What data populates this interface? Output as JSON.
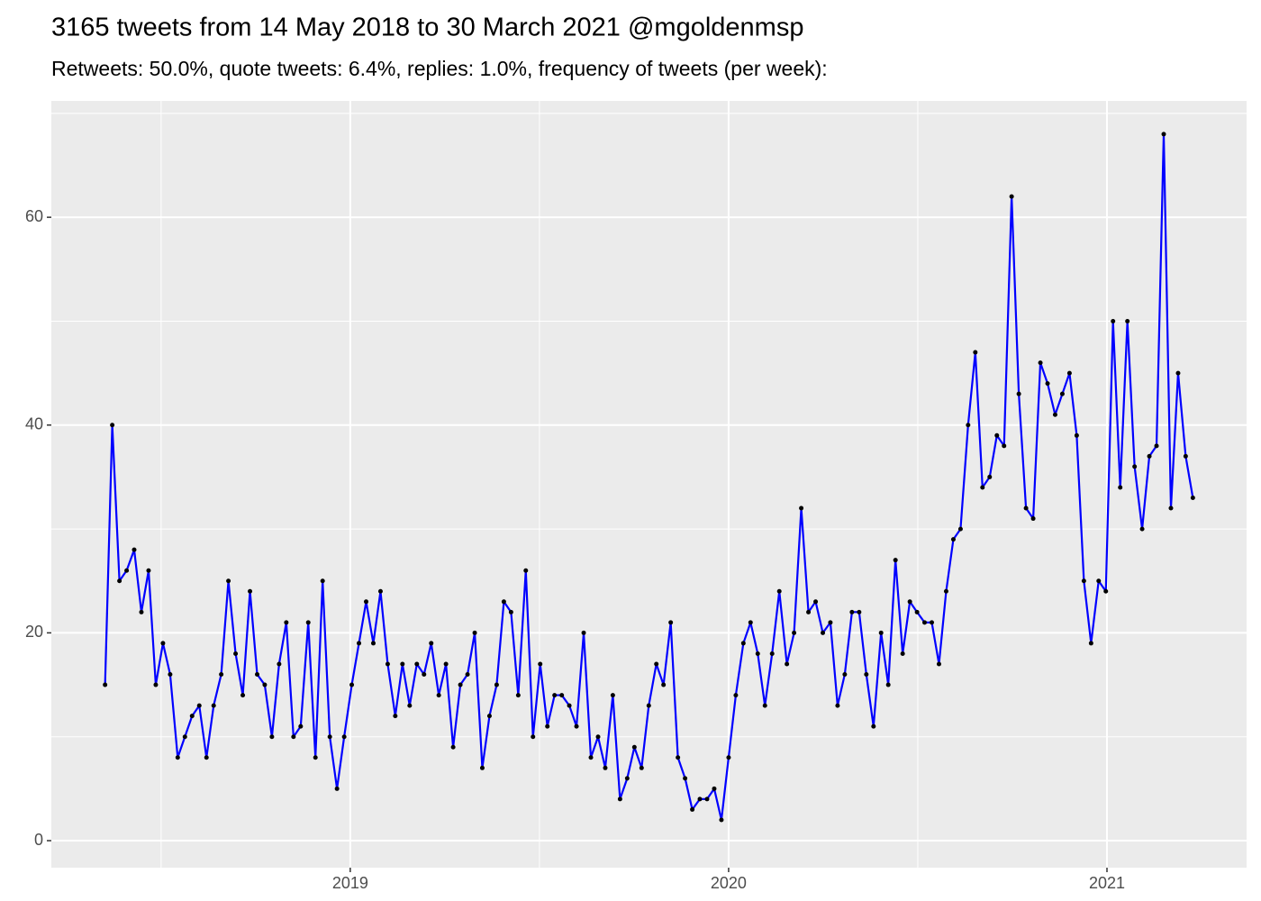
{
  "chart_data": {
    "type": "line",
    "title": "3165 tweets from 14 May 2018 to 30 March 2021 @mgoldenmsp",
    "subtitle": "Retweets: 50.0%, quote tweets: 6.4%, replies: 1.0%, frequency of tweets (per week):",
    "x": [
      2018.352,
      2018.371,
      2018.39,
      2018.409,
      2018.429,
      2018.448,
      2018.467,
      2018.486,
      2018.505,
      2018.524,
      2018.544,
      2018.563,
      2018.582,
      2018.601,
      2018.62,
      2018.639,
      2018.659,
      2018.678,
      2018.697,
      2018.716,
      2018.735,
      2018.754,
      2018.774,
      2018.793,
      2018.812,
      2018.831,
      2018.85,
      2018.869,
      2018.889,
      2018.908,
      2018.927,
      2018.946,
      2018.965,
      2018.984,
      2019.004,
      2019.023,
      2019.042,
      2019.061,
      2019.08,
      2019.099,
      2019.119,
      2019.138,
      2019.157,
      2019.176,
      2019.195,
      2019.214,
      2019.234,
      2019.253,
      2019.272,
      2019.291,
      2019.31,
      2019.329,
      2019.349,
      2019.368,
      2019.387,
      2019.406,
      2019.425,
      2019.444,
      2019.464,
      2019.483,
      2019.502,
      2019.521,
      2019.54,
      2019.559,
      2019.579,
      2019.598,
      2019.617,
      2019.636,
      2019.655,
      2019.674,
      2019.694,
      2019.713,
      2019.732,
      2019.751,
      2019.77,
      2019.789,
      2019.809,
      2019.828,
      2019.847,
      2019.866,
      2019.885,
      2019.904,
      2019.924,
      2019.943,
      2019.962,
      2019.981,
      2020.0,
      2020.019,
      2020.039,
      2020.058,
      2020.077,
      2020.096,
      2020.115,
      2020.134,
      2020.154,
      2020.173,
      2020.192,
      2020.211,
      2020.23,
      2020.249,
      2020.269,
      2020.288,
      2020.307,
      2020.326,
      2020.345,
      2020.364,
      2020.383,
      2020.403,
      2020.422,
      2020.441,
      2020.46,
      2020.479,
      2020.498,
      2020.518,
      2020.537,
      2020.556,
      2020.575,
      2020.594,
      2020.613,
      2020.633,
      2020.652,
      2020.671,
      2020.69,
      2020.709,
      2020.728,
      2020.748,
      2020.767,
      2020.786,
      2020.805,
      2020.824,
      2020.843,
      2020.863,
      2020.882,
      2020.901,
      2020.92,
      2020.939,
      2020.958,
      2020.978,
      2020.997,
      2021.016,
      2021.035,
      2021.054,
      2021.073,
      2021.093,
      2021.112,
      2021.131,
      2021.15,
      2021.169,
      2021.188,
      2021.208,
      2021.227
    ],
    "series": [
      {
        "color": "#0000ff",
        "point_color": "#000000",
        "values": [
          15,
          40,
          25,
          26,
          28,
          22,
          26,
          15,
          19,
          16,
          8,
          10,
          12,
          13,
          8,
          13,
          16,
          25,
          18,
          14,
          24,
          16,
          15,
          10,
          17,
          21,
          10,
          11,
          21,
          8,
          25,
          10,
          5,
          10,
          15,
          19,
          23,
          19,
          24,
          17,
          12,
          17,
          13,
          17,
          16,
          19,
          14,
          17,
          9,
          15,
          16,
          20,
          7,
          12,
          15,
          23,
          22,
          14,
          26,
          10,
          17,
          11,
          14,
          14,
          13,
          11,
          20,
          8,
          10,
          7,
          14,
          4,
          6,
          9,
          7,
          13,
          17,
          15,
          21,
          8,
          6,
          3,
          4,
          4,
          5,
          2,
          8,
          14,
          19,
          21,
          18,
          13,
          18,
          24,
          17,
          20,
          32,
          22,
          23,
          20,
          21,
          13,
          16,
          22,
          22,
          16,
          11,
          20,
          15,
          27,
          18,
          23,
          22,
          21,
          21,
          17,
          24,
          29,
          30,
          40,
          47,
          34,
          35,
          39,
          38,
          62,
          43,
          32,
          31,
          46,
          44,
          41,
          43,
          45,
          39,
          25,
          19,
          25,
          24,
          50,
          34,
          50,
          36,
          30,
          37,
          38,
          68,
          32,
          45,
          37,
          33
        ]
      }
    ],
    "xlim": [
      2018.21,
      2021.369
    ],
    "xticks": [
      2019,
      2020,
      2021
    ],
    "xminor": [
      2018.5,
      2019.5,
      2020.5
    ],
    "ylim": [
      -2.6,
      71.2
    ],
    "yticks": [
      0,
      20,
      40,
      60
    ],
    "yminor": [
      10,
      30,
      50,
      70
    ],
    "grid": true
  }
}
